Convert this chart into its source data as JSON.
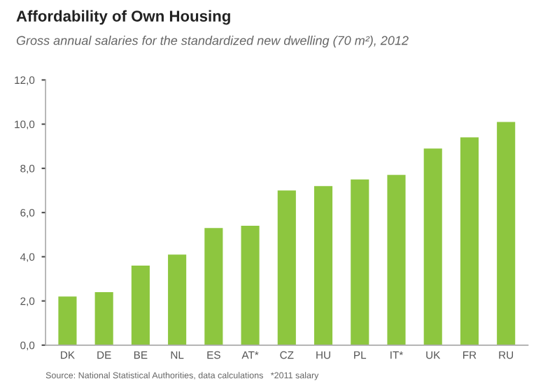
{
  "chart_data": {
    "type": "bar",
    "title": "Affordability of Own Housing",
    "subtitle": "Gross annual salaries for the standardized new dwelling (70 m²), 2012",
    "categories": [
      "DK",
      "DE",
      "BE",
      "NL",
      "ES",
      "AT*",
      "CZ",
      "HU",
      "PL",
      "IT*",
      "UK",
      "FR",
      "RU"
    ],
    "values": [
      2.2,
      2.4,
      3.6,
      4.1,
      5.3,
      5.4,
      7.0,
      7.2,
      7.5,
      7.7,
      8.9,
      9.4,
      10.1
    ],
    "color": "#8dc63f",
    "ylim": [
      0,
      12
    ],
    "yticks": [
      {
        "value": 0,
        "label": "0,0"
      },
      {
        "value": 2,
        "label": "2,0"
      },
      {
        "value": 4,
        "label": "4,0"
      },
      {
        "value": 6,
        "label": "6,0"
      },
      {
        "value": 8,
        "label": "8,0"
      },
      {
        "value": 10,
        "label": "10,0"
      },
      {
        "value": 12,
        "label": "12,0"
      }
    ],
    "grid": false,
    "legend": false,
    "annotations": [
      "Source: National Statistical Authorities, data calculations   *2011 salary"
    ]
  }
}
